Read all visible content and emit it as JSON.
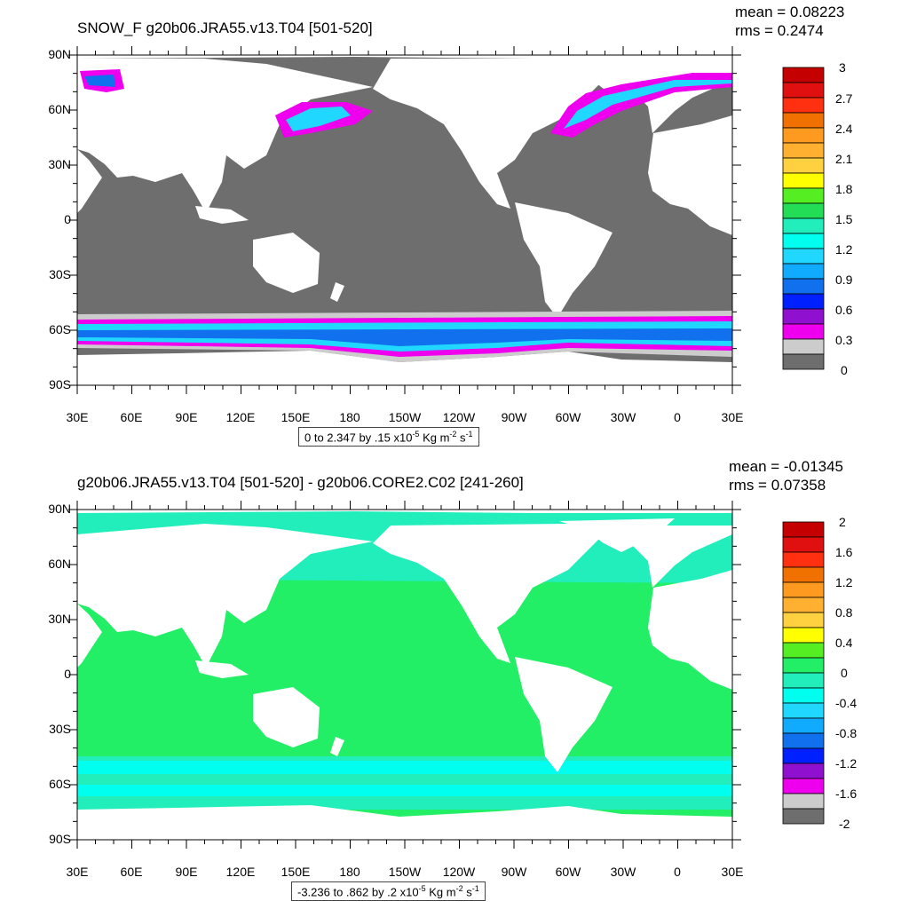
{
  "chart_data": [
    {
      "type": "heatmap",
      "title": "SNOW_F g20b06.JRA55.v13.T04 [501-520]",
      "stats": {
        "mean": "mean = 0.08223",
        "rms": "rms = 0.2474"
      },
      "y_ticks": [
        "90N",
        "60N",
        "30N",
        "0",
        "30S",
        "60S",
        "90S"
      ],
      "x_ticks": [
        "30E",
        "60E",
        "90E",
        "120E",
        "150E",
        "180",
        "150W",
        "120W",
        "90W",
        "60W",
        "30W",
        "0",
        "30E"
      ],
      "colorbar_labels": [
        "3",
        "2.7",
        "2.4",
        "2.1",
        "1.8",
        "1.5",
        "1.2",
        "0.9",
        "0.6",
        "0.3",
        "0"
      ],
      "colorbar_colors": [
        "#c40000",
        "#e01010",
        "#ff3010",
        "#f07000",
        "#ff9a20",
        "#ffb030",
        "#ffd040",
        "#ffff00",
        "#55ee22",
        "#22dd55",
        "#22eebb",
        "#00ffee",
        "#20d8ff",
        "#10aaff",
        "#1070ee",
        "#0020ff",
        "#9010d0",
        "#ee00ee",
        "#cccccc",
        "#6e6e6e"
      ],
      "caption": {
        "range": "0 to 2.347 by .15 x10",
        "exp": "-5",
        "unit": " Kg m",
        "exp2": "-2",
        "unit2": " s",
        "exp3": "-1"
      },
      "ocean_color": "#6e6e6e"
    },
    {
      "type": "heatmap",
      "title": "g20b06.JRA55.v13.T04 [501-520] - g20b06.CORE2.C02 [241-260]",
      "stats": {
        "mean": "mean = -0.01345",
        "rms": "rms = 0.07358"
      },
      "y_ticks": [
        "90N",
        "60N",
        "30N",
        "0",
        "30S",
        "60S",
        "90S"
      ],
      "x_ticks": [
        "30E",
        "60E",
        "90E",
        "120E",
        "150E",
        "180",
        "150W",
        "120W",
        "90W",
        "60W",
        "30W",
        "0",
        "30E"
      ],
      "colorbar_labels": [
        "2",
        "1.6",
        "1.2",
        "0.8",
        "0.4",
        "0",
        "-0.4",
        "-0.8",
        "-1.2",
        "-1.6",
        "-2"
      ],
      "colorbar_colors": [
        "#c40000",
        "#e01010",
        "#ff3010",
        "#f07000",
        "#ff9a20",
        "#ffb030",
        "#ffd040",
        "#ffff00",
        "#55ee22",
        "#22ee66",
        "#22eebb",
        "#00ffee",
        "#20d8ff",
        "#10aaff",
        "#1070ee",
        "#0020ff",
        "#9010d0",
        "#ee00ee",
        "#cccccc",
        "#6e6e6e"
      ],
      "caption": {
        "range": "-3.236 to .862 by .2 x10",
        "exp": "-5",
        "unit": " Kg m",
        "exp2": "-2",
        "unit2": " s",
        "exp3": "-1"
      },
      "ocean_color": "#22ee66"
    }
  ]
}
